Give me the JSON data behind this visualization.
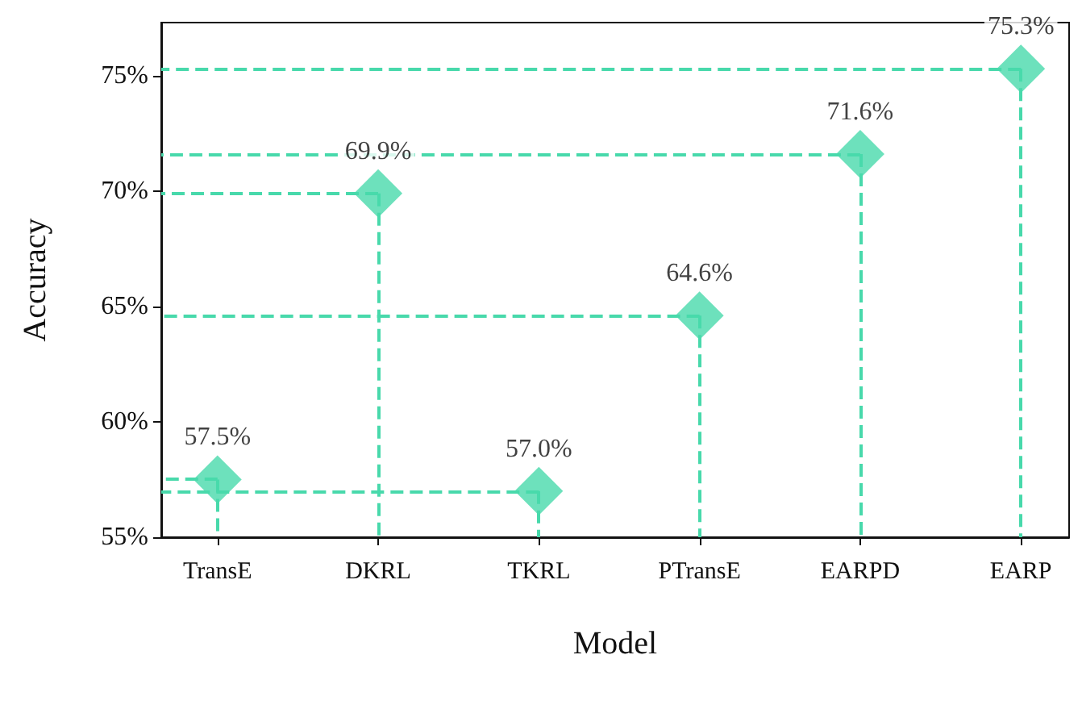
{
  "chart_data": {
    "type": "lollipop",
    "xlabel": "Model",
    "ylabel": "Accuracy",
    "categories": [
      "TransE",
      "DKRL",
      "TKRL",
      "PTransE",
      "EARPD",
      "EARP"
    ],
    "values": [
      57.5,
      69.9,
      57.0,
      64.6,
      71.6,
      75.3
    ],
    "value_labels": [
      "57.5%",
      "69.9%",
      "57.0%",
      "64.6%",
      "71.6%",
      "75.3%"
    ],
    "color": "#48d9ab",
    "marker": "diamond",
    "line_style": "dashed",
    "ylim": [
      55,
      77.3
    ],
    "yticks": [
      {
        "value": 55,
        "label": "55%"
      },
      {
        "value": 60,
        "label": "60%"
      },
      {
        "value": 65,
        "label": "65%"
      },
      {
        "value": 70,
        "label": "70%"
      },
      {
        "value": 75,
        "label": "75%"
      }
    ]
  }
}
